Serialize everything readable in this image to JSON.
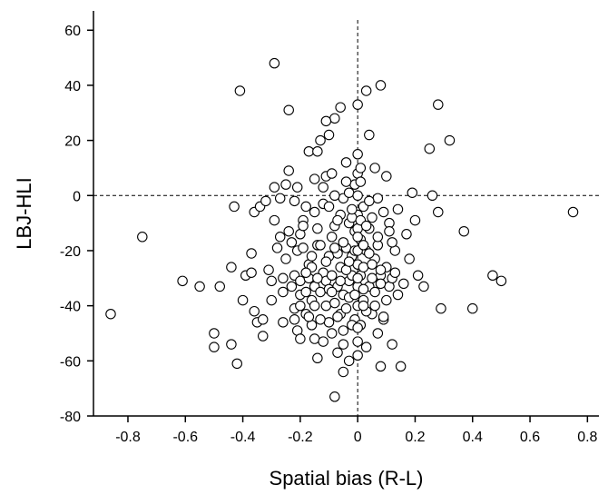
{
  "chart_data": {
    "type": "scatter",
    "title": "",
    "xlabel": "Spatial bias (R-L)",
    "ylabel": "LBJ-HLI",
    "xlim": [
      -0.92,
      0.84
    ],
    "ylim": [
      -80,
      67
    ],
    "xticks": [
      -0.8,
      -0.6,
      -0.4,
      -0.2,
      0,
      0.2,
      0.4,
      0.6,
      0.8
    ],
    "xtick_labels": [
      "-0.8",
      "-0.6",
      "-0.4",
      "-0.2",
      "0",
      "0.2",
      "0.4",
      "0.6",
      "0.8"
    ],
    "yticks": [
      -80,
      -60,
      -40,
      -20,
      0,
      20,
      40,
      60
    ],
    "ytick_labels": [
      "-80",
      "-60",
      "-40",
      "-20",
      "0",
      "20",
      "40",
      "60"
    ],
    "reference_lines": [
      {
        "axis": "x",
        "value": 0,
        "style": "dashed"
      },
      {
        "axis": "y",
        "value": 0,
        "style": "dashed"
      }
    ],
    "grid": false,
    "marker": "open-circle",
    "points": [
      [
        -0.86,
        -43
      ],
      [
        -0.75,
        -15
      ],
      [
        -0.61,
        -31
      ],
      [
        -0.55,
        -33
      ],
      [
        -0.5,
        -50
      ],
      [
        -0.5,
        -55
      ],
      [
        -0.48,
        -33
      ],
      [
        -0.44,
        -54
      ],
      [
        -0.44,
        -26
      ],
      [
        -0.43,
        -4
      ],
      [
        -0.42,
        -61
      ],
      [
        -0.41,
        38
      ],
      [
        -0.4,
        -38
      ],
      [
        -0.39,
        -29
      ],
      [
        -0.37,
        -28
      ],
      [
        -0.37,
        -21
      ],
      [
        -0.36,
        -42
      ],
      [
        -0.36,
        -6
      ],
      [
        -0.35,
        -46
      ],
      [
        -0.34,
        -4
      ],
      [
        -0.33,
        -45
      ],
      [
        -0.33,
        -51
      ],
      [
        -0.32,
        -2
      ],
      [
        -0.31,
        -27
      ],
      [
        -0.3,
        -31
      ],
      [
        -0.3,
        -38
      ],
      [
        -0.29,
        48
      ],
      [
        -0.29,
        -9
      ],
      [
        -0.29,
        3
      ],
      [
        -0.28,
        -19
      ],
      [
        -0.27,
        -15
      ],
      [
        -0.27,
        -1
      ],
      [
        -0.26,
        -35
      ],
      [
        -0.26,
        -30
      ],
      [
        -0.26,
        -46
      ],
      [
        -0.25,
        4
      ],
      [
        -0.25,
        -23
      ],
      [
        -0.24,
        31
      ],
      [
        -0.24,
        9
      ],
      [
        -0.24,
        -13
      ],
      [
        -0.23,
        -33
      ],
      [
        -0.23,
        -17
      ],
      [
        -0.22,
        -29
      ],
      [
        -0.22,
        -41
      ],
      [
        -0.22,
        -2
      ],
      [
        -0.21,
        -20
      ],
      [
        -0.21,
        -49
      ],
      [
        -0.2,
        -31
      ],
      [
        -0.2,
        -36
      ],
      [
        -0.2,
        -52
      ],
      [
        -0.19,
        -19
      ],
      [
        -0.19,
        -9
      ],
      [
        -0.18,
        -4
      ],
      [
        -0.18,
        -43
      ],
      [
        -0.17,
        -30
      ],
      [
        -0.17,
        -25
      ],
      [
        -0.16,
        -47
      ],
      [
        -0.16,
        -38
      ],
      [
        -0.16,
        -26
      ],
      [
        -0.15,
        -33
      ],
      [
        -0.15,
        -6
      ],
      [
        -0.15,
        -52
      ],
      [
        -0.14,
        -18
      ],
      [
        -0.14,
        -59
      ],
      [
        -0.13,
        20
      ],
      [
        -0.13,
        -35
      ],
      [
        -0.13,
        -18
      ],
      [
        -0.12,
        -53
      ],
      [
        -0.12,
        -28
      ],
      [
        -0.11,
        -40
      ],
      [
        -0.11,
        -31
      ],
      [
        -0.11,
        7
      ],
      [
        -0.1,
        -46
      ],
      [
        -0.1,
        -22
      ],
      [
        -0.09,
        8
      ],
      [
        -0.09,
        -29
      ],
      [
        -0.08,
        28
      ],
      [
        -0.08,
        -73
      ],
      [
        -0.08,
        -39
      ],
      [
        -0.08,
        -11
      ],
      [
        -0.07,
        -33
      ],
      [
        -0.07,
        -57
      ],
      [
        -0.06,
        -26
      ],
      [
        -0.06,
        -43
      ],
      [
        -0.05,
        -1
      ],
      [
        -0.05,
        -36
      ],
      [
        -0.05,
        -49
      ],
      [
        -0.04,
        -19
      ],
      [
        -0.04,
        -41
      ],
      [
        -0.03,
        -31
      ],
      [
        -0.03,
        -10
      ],
      [
        -0.03,
        -60
      ],
      [
        -0.02,
        -22
      ],
      [
        -0.02,
        -29
      ],
      [
        -0.01,
        -45
      ],
      [
        -0.01,
        -13
      ],
      [
        0,
        -25
      ],
      [
        0,
        -7
      ],
      [
        0,
        -33
      ],
      [
        0,
        -40
      ],
      [
        0,
        8
      ],
      [
        0,
        33
      ],
      [
        0,
        -58
      ],
      [
        0.01,
        -16
      ],
      [
        0.01,
        -29
      ],
      [
        0.01,
        -47
      ],
      [
        0.02,
        -26
      ],
      [
        0.02,
        -38
      ],
      [
        0.02,
        -4
      ],
      [
        0.03,
        38
      ],
      [
        0.03,
        -20
      ],
      [
        0.03,
        -55
      ],
      [
        0.04,
        -12
      ],
      [
        0.04,
        -33
      ],
      [
        0.05,
        -8
      ],
      [
        0.05,
        -43
      ],
      [
        0.06,
        -23
      ],
      [
        0.06,
        -35
      ],
      [
        0.07,
        -1
      ],
      [
        0.07,
        -18
      ],
      [
        0.08,
        40
      ],
      [
        0.08,
        -29
      ],
      [
        0.08,
        -62
      ],
      [
        0.09,
        -45
      ],
      [
        0.1,
        -38
      ],
      [
        0.1,
        7
      ],
      [
        0.11,
        -10
      ],
      [
        0.11,
        -33
      ],
      [
        0.12,
        -54
      ],
      [
        0.13,
        -20
      ],
      [
        0.14,
        -5
      ],
      [
        0.15,
        -62
      ],
      [
        0.17,
        -14
      ],
      [
        0.18,
        -23
      ],
      [
        0.19,
        1
      ],
      [
        0.2,
        -9
      ],
      [
        0.21,
        -29
      ],
      [
        0.23,
        -33
      ],
      [
        0.25,
        17
      ],
      [
        0.26,
        0
      ],
      [
        0.28,
        33
      ],
      [
        0.28,
        -6
      ],
      [
        0.29,
        -41
      ],
      [
        0.32,
        20
      ],
      [
        0.37,
        -13
      ],
      [
        0.4,
        -41
      ],
      [
        0.47,
        -29
      ],
      [
        0.5,
        -31
      ],
      [
        0.75,
        -6
      ],
      [
        -0.2,
        -14
      ],
      [
        -0.2,
        -40
      ],
      [
        -0.18,
        -35
      ],
      [
        -0.17,
        16
      ],
      [
        -0.16,
        -22
      ],
      [
        -0.15,
        6
      ],
      [
        -0.15,
        -40
      ],
      [
        -0.14,
        -30
      ],
      [
        -0.13,
        -45
      ],
      [
        -0.12,
        3
      ],
      [
        -0.12,
        -3
      ],
      [
        -0.11,
        -24
      ],
      [
        -0.1,
        22
      ],
      [
        -0.1,
        -34
      ],
      [
        -0.09,
        -15
      ],
      [
        -0.09,
        -50
      ],
      [
        -0.08,
        0
      ],
      [
        -0.07,
        -21
      ],
      [
        -0.07,
        -44
      ],
      [
        -0.06,
        32
      ],
      [
        -0.06,
        -7
      ],
      [
        -0.05,
        -17
      ],
      [
        -0.05,
        -54
      ],
      [
        -0.04,
        12
      ],
      [
        -0.04,
        -27
      ],
      [
        -0.03,
        1
      ],
      [
        -0.03,
        -37
      ],
      [
        -0.02,
        -8
      ],
      [
        -0.02,
        -47
      ],
      [
        -0.01,
        4
      ],
      [
        -0.01,
        -20
      ],
      [
        0,
        0
      ],
      [
        0,
        -12
      ],
      [
        0,
        -20
      ],
      [
        0,
        -30
      ],
      [
        0,
        -48
      ],
      [
        0,
        15
      ],
      [
        0.01,
        5
      ],
      [
        0.01,
        -9
      ],
      [
        0.02,
        -18
      ],
      [
        0.02,
        -34
      ],
      [
        0.03,
        -42
      ],
      [
        0.04,
        22
      ],
      [
        0.04,
        -2
      ],
      [
        0.05,
        -25
      ],
      [
        0.06,
        10
      ],
      [
        0.06,
        -40
      ],
      [
        0.07,
        -15
      ],
      [
        0.08,
        -32
      ],
      [
        0.09,
        -6
      ],
      [
        0.1,
        -26
      ],
      [
        0.12,
        -30
      ],
      [
        0.14,
        -36
      ],
      [
        -0.21,
        3
      ],
      [
        -0.19,
        -11
      ],
      [
        -0.18,
        -28
      ],
      [
        -0.17,
        -44
      ],
      [
        -0.14,
        -12
      ],
      [
        -0.11,
        27
      ],
      [
        -0.1,
        -4
      ],
      [
        -0.08,
        -19
      ],
      [
        -0.07,
        -9
      ],
      [
        -0.06,
        -31
      ],
      [
        -0.04,
        5
      ],
      [
        -0.03,
        -24
      ],
      [
        -0.02,
        -5
      ],
      [
        -0.01,
        -36
      ],
      [
        0.0,
        -15
      ],
      [
        0.0,
        -53
      ],
      [
        0.01,
        10
      ],
      [
        0.02,
        -40
      ],
      [
        0.03,
        -11
      ],
      [
        0.05,
        -30
      ],
      [
        0.07,
        -50
      ],
      [
        0.09,
        -44
      ],
      [
        0.11,
        -13
      ],
      [
        0.13,
        -28
      ],
      [
        0.16,
        -32
      ],
      [
        -0.22,
        -45
      ],
      [
        -0.14,
        16
      ],
      [
        -0.09,
        -35
      ],
      [
        -0.05,
        -64
      ],
      [
        0.04,
        -21
      ],
      [
        0.08,
        -27
      ],
      [
        0.12,
        -17
      ]
    ]
  }
}
